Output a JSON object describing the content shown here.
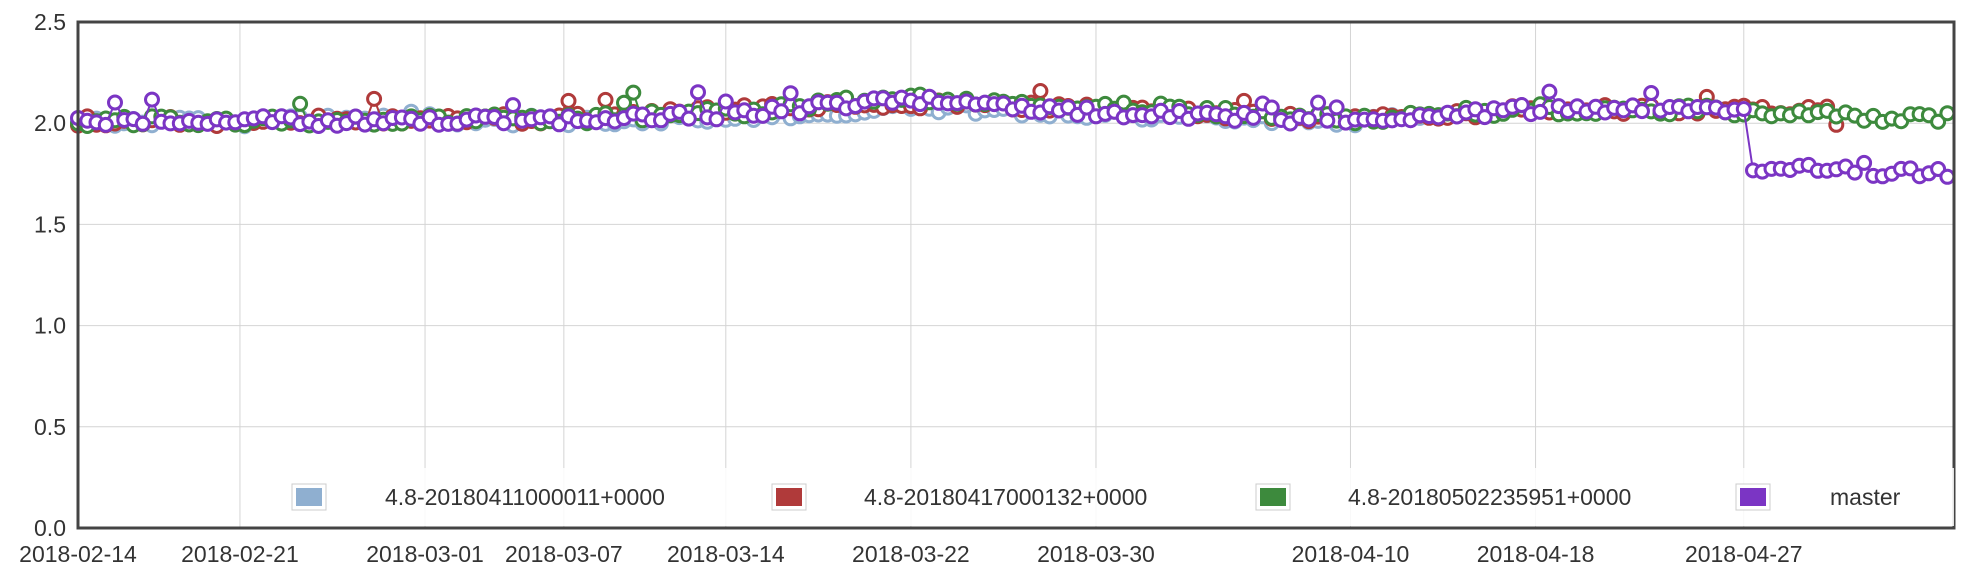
{
  "chart_data": {
    "type": "scatter",
    "ylim": [
      0,
      2.5
    ],
    "yticks": [
      "0.0",
      "0.5",
      "1.0",
      "1.5",
      "2.0",
      "2.5"
    ],
    "xticks": [
      "2018-02-14",
      "2018-02-21",
      "2018-03-01",
      "2018-03-07",
      "2018-03-14",
      "2018-03-22",
      "2018-03-30",
      "2018-04-10",
      "2018-04-18",
      "2018-04-27"
    ],
    "grid": true,
    "legend_position": "bottom",
    "series": [
      {
        "name": "4.8-20180411000011+0000",
        "color": "#8fafd0",
        "x": [
          "2018-02-14",
          "2018-02-21",
          "2018-03-01",
          "2018-03-07",
          "2018-03-14",
          "2018-03-22",
          "2018-03-30",
          "2018-04-10",
          "2018-04-13"
        ],
        "values": [
          2.01,
          2.01,
          2.02,
          2.01,
          2.03,
          2.08,
          2.05,
          2.01,
          2.05
        ]
      },
      {
        "name": "4.8-20180417000132+0000",
        "color": "#b03a3a",
        "x": [
          "2018-02-14",
          "2018-02-21",
          "2018-03-01",
          "2018-03-07",
          "2018-03-14",
          "2018-03-22",
          "2018-03-30",
          "2018-04-10",
          "2018-04-18",
          "2018-04-27",
          "2018-05-01"
        ],
        "values": [
          2.01,
          2.01,
          2.02,
          2.02,
          2.06,
          2.1,
          2.07,
          2.02,
          2.07,
          2.07,
          2.06
        ]
      },
      {
        "name": "4.8-20180502235951+0000",
        "color": "#3d8a3d",
        "x": [
          "2018-02-14",
          "2018-02-21",
          "2018-03-01",
          "2018-03-07",
          "2018-03-14",
          "2018-03-22",
          "2018-03-30",
          "2018-04-10",
          "2018-04-18",
          "2018-04-27",
          "2018-05-02",
          "2018-05-06"
        ],
        "values": [
          2.01,
          2.01,
          2.02,
          2.02,
          2.05,
          2.13,
          2.09,
          2.02,
          2.07,
          2.06,
          2.03,
          2.03
        ]
      },
      {
        "name": "master",
        "color": "#7b35c4",
        "x": [
          "2018-02-14",
          "2018-02-21",
          "2018-03-01",
          "2018-03-07",
          "2018-03-14",
          "2018-03-22",
          "2018-03-30",
          "2018-04-10",
          "2018-04-18",
          "2018-04-27",
          "2018-05-02",
          "2018-05-06"
        ],
        "values": [
          2.01,
          2.01,
          2.01,
          2.02,
          2.04,
          2.12,
          2.05,
          2.01,
          2.07,
          2.06,
          1.78,
          1.76
        ]
      }
    ]
  }
}
